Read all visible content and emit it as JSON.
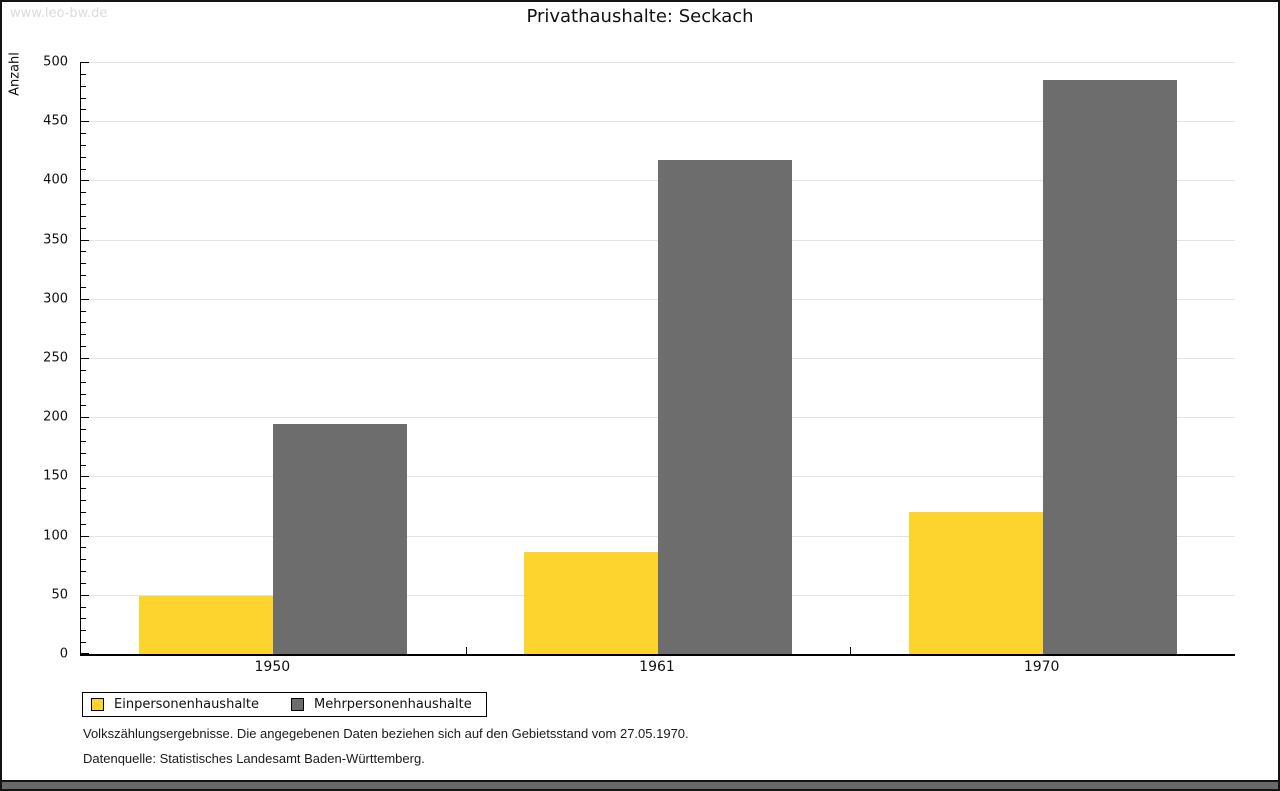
{
  "watermark": "www.leo-bw.de",
  "title": "Privathaushalte: Seckach",
  "colors": {
    "series_yellow": "#fdd32d",
    "series_gray": "#6d6d6d",
    "gridline": "#e3e3e3",
    "axis": "#000000",
    "watermark_text": "#dcdcdc",
    "bottom_strip": "#696969"
  },
  "chart_data": {
    "type": "bar",
    "title": "Privathaushalte: Seckach",
    "xlabel": "",
    "ylabel": "Anzahl",
    "categories": [
      "1950",
      "1961",
      "1970"
    ],
    "series": [
      {
        "name": "Einpersonenhaushalte",
        "color": "#fdd32d",
        "values": [
          49,
          86,
          120
        ]
      },
      {
        "name": "Mehrpersonenhaushalte",
        "color": "#6d6d6d",
        "values": [
          194,
          417,
          485
        ]
      }
    ],
    "ylim": [
      0,
      500
    ],
    "ytick_step": 50,
    "y_minor_tick_step": 10,
    "grid": true,
    "legend_position": "bottom-left"
  },
  "footnotes": [
    "Volkszählungsergebnisse. Die angegebenen Daten beziehen sich auf den Gebietsstand vom 27.05.1970.",
    "Datenquelle: Statistisches Landesamt Baden-Württemberg."
  ]
}
